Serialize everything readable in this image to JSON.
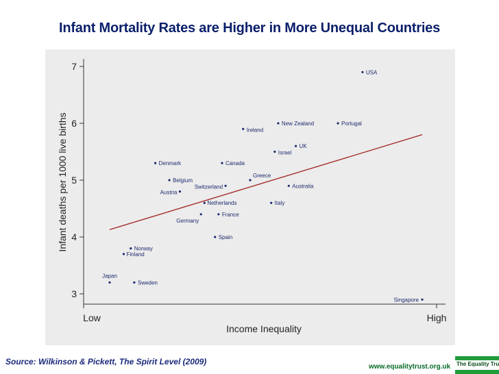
{
  "header": {
    "title": "Infant Mortality Rates are Higher in More Unequal Countries"
  },
  "footer": {
    "source": "Source: Wilkinson & Pickett, The Spirit Level (2009)",
    "website": "www.equalitytrust.org.uk",
    "logo_text": "The Equality Trust"
  },
  "colors": {
    "title": "#0a1f6b",
    "panel": "#ececec",
    "trend": "#a4302c",
    "point": "#1e2a6e",
    "label": "#1e2a6e"
  },
  "chart_data": {
    "type": "scatter",
    "title": "Infant Mortality Rates are Higher in More Unequal Countries",
    "xlabel": "Income Inequality",
    "ylabel": "Infant deaths per 1000 live births",
    "x_tick_labels": [
      "Low",
      "High"
    ],
    "xlim": [
      0,
      100
    ],
    "ylim": [
      2.9,
      7.1
    ],
    "yticks": [
      3,
      4,
      5,
      6,
      7
    ],
    "grid": false,
    "points": [
      {
        "label": "USA",
        "x": 79,
        "y": 6.9
      },
      {
        "label": "Portugal",
        "x": 72,
        "y": 6.0
      },
      {
        "label": "New Zealand",
        "x": 55,
        "y": 6.0
      },
      {
        "label": "Ireland",
        "x": 45,
        "y": 5.9
      },
      {
        "label": "UK",
        "x": 60,
        "y": 5.6
      },
      {
        "label": "Israel",
        "x": 54,
        "y": 5.5
      },
      {
        "label": "Denmark",
        "x": 20,
        "y": 5.3
      },
      {
        "label": "Canada",
        "x": 39,
        "y": 5.3
      },
      {
        "label": "Greece",
        "x": 47,
        "y": 5.0
      },
      {
        "label": "Belgium",
        "x": 24,
        "y": 5.0
      },
      {
        "label": "Switzerland",
        "x": 40,
        "y": 4.9
      },
      {
        "label": "Australia",
        "x": 58,
        "y": 4.9
      },
      {
        "label": "Austria",
        "x": 27,
        "y": 4.8
      },
      {
        "label": "Netherlands",
        "x": 34,
        "y": 4.6
      },
      {
        "label": "Italy",
        "x": 53,
        "y": 4.6
      },
      {
        "label": "Germany",
        "x": 33,
        "y": 4.4
      },
      {
        "label": "France",
        "x": 38,
        "y": 4.4
      },
      {
        "label": "Spain",
        "x": 37,
        "y": 4.0
      },
      {
        "label": "Norway",
        "x": 13,
        "y": 3.8
      },
      {
        "label": "Finland",
        "x": 11,
        "y": 3.7
      },
      {
        "label": "Japan",
        "x": 7,
        "y": 3.2
      },
      {
        "label": "Sweden",
        "x": 14,
        "y": 3.2
      },
      {
        "label": "Singapore",
        "x": 96,
        "y": 2.9
      }
    ],
    "trendline": {
      "x": [
        7,
        96
      ],
      "y": [
        4.13,
        5.8
      ]
    }
  }
}
